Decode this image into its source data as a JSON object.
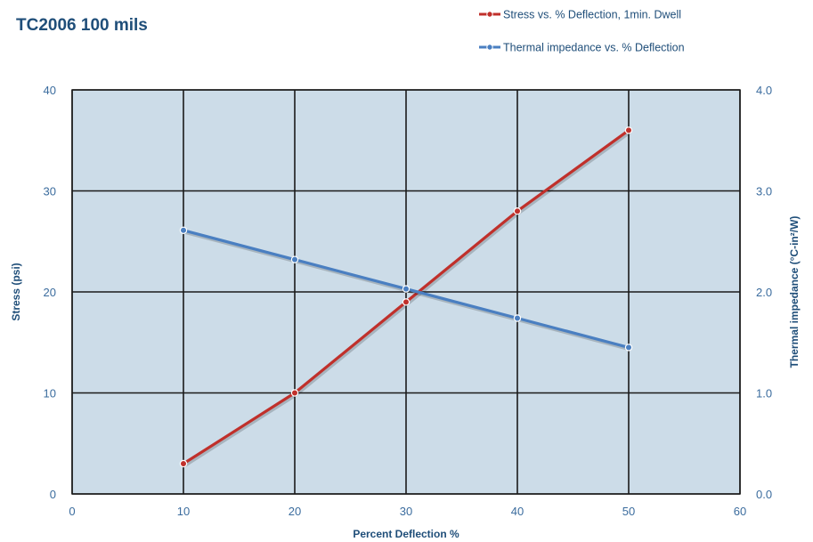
{
  "chart_data": {
    "type": "line",
    "title": "TC2006 100 mils",
    "xlabel": "Percent Deflection %",
    "ylabel_left": "Stress (psi)",
    "ylabel_right": "Thermal impedance (°C-in²/W)",
    "xlim": [
      0,
      60
    ],
    "ylim_left": [
      0,
      40
    ],
    "ylim_right": [
      0.0,
      4.0
    ],
    "x_ticks": [
      "0",
      "10",
      "20",
      "30",
      "40",
      "50",
      "60"
    ],
    "y_left_ticks": [
      "0",
      "10",
      "20",
      "30",
      "40"
    ],
    "y_right_ticks": [
      "0.0",
      "1.0",
      "2.0",
      "3.0",
      "4.0"
    ],
    "grid": true,
    "legend_position": "top-right",
    "series": [
      {
        "name": "Stress vs. % Deflection, 1min. Dwell",
        "axis": "left",
        "color": "#c0302b",
        "x": [
          10,
          20,
          30,
          40,
          50
        ],
        "y": [
          3,
          10,
          19,
          28,
          36
        ]
      },
      {
        "name": "Thermal impedance vs. % Deflection",
        "axis": "right",
        "color": "#4a7fc1",
        "x": [
          10,
          20,
          30,
          40,
          50
        ],
        "y": [
          2.61,
          2.32,
          2.03,
          1.74,
          1.45
        ]
      }
    ],
    "colors": {
      "plot_background": "#ccdce8",
      "grid": "#1a1a1a",
      "text": "#1f4e79"
    }
  }
}
